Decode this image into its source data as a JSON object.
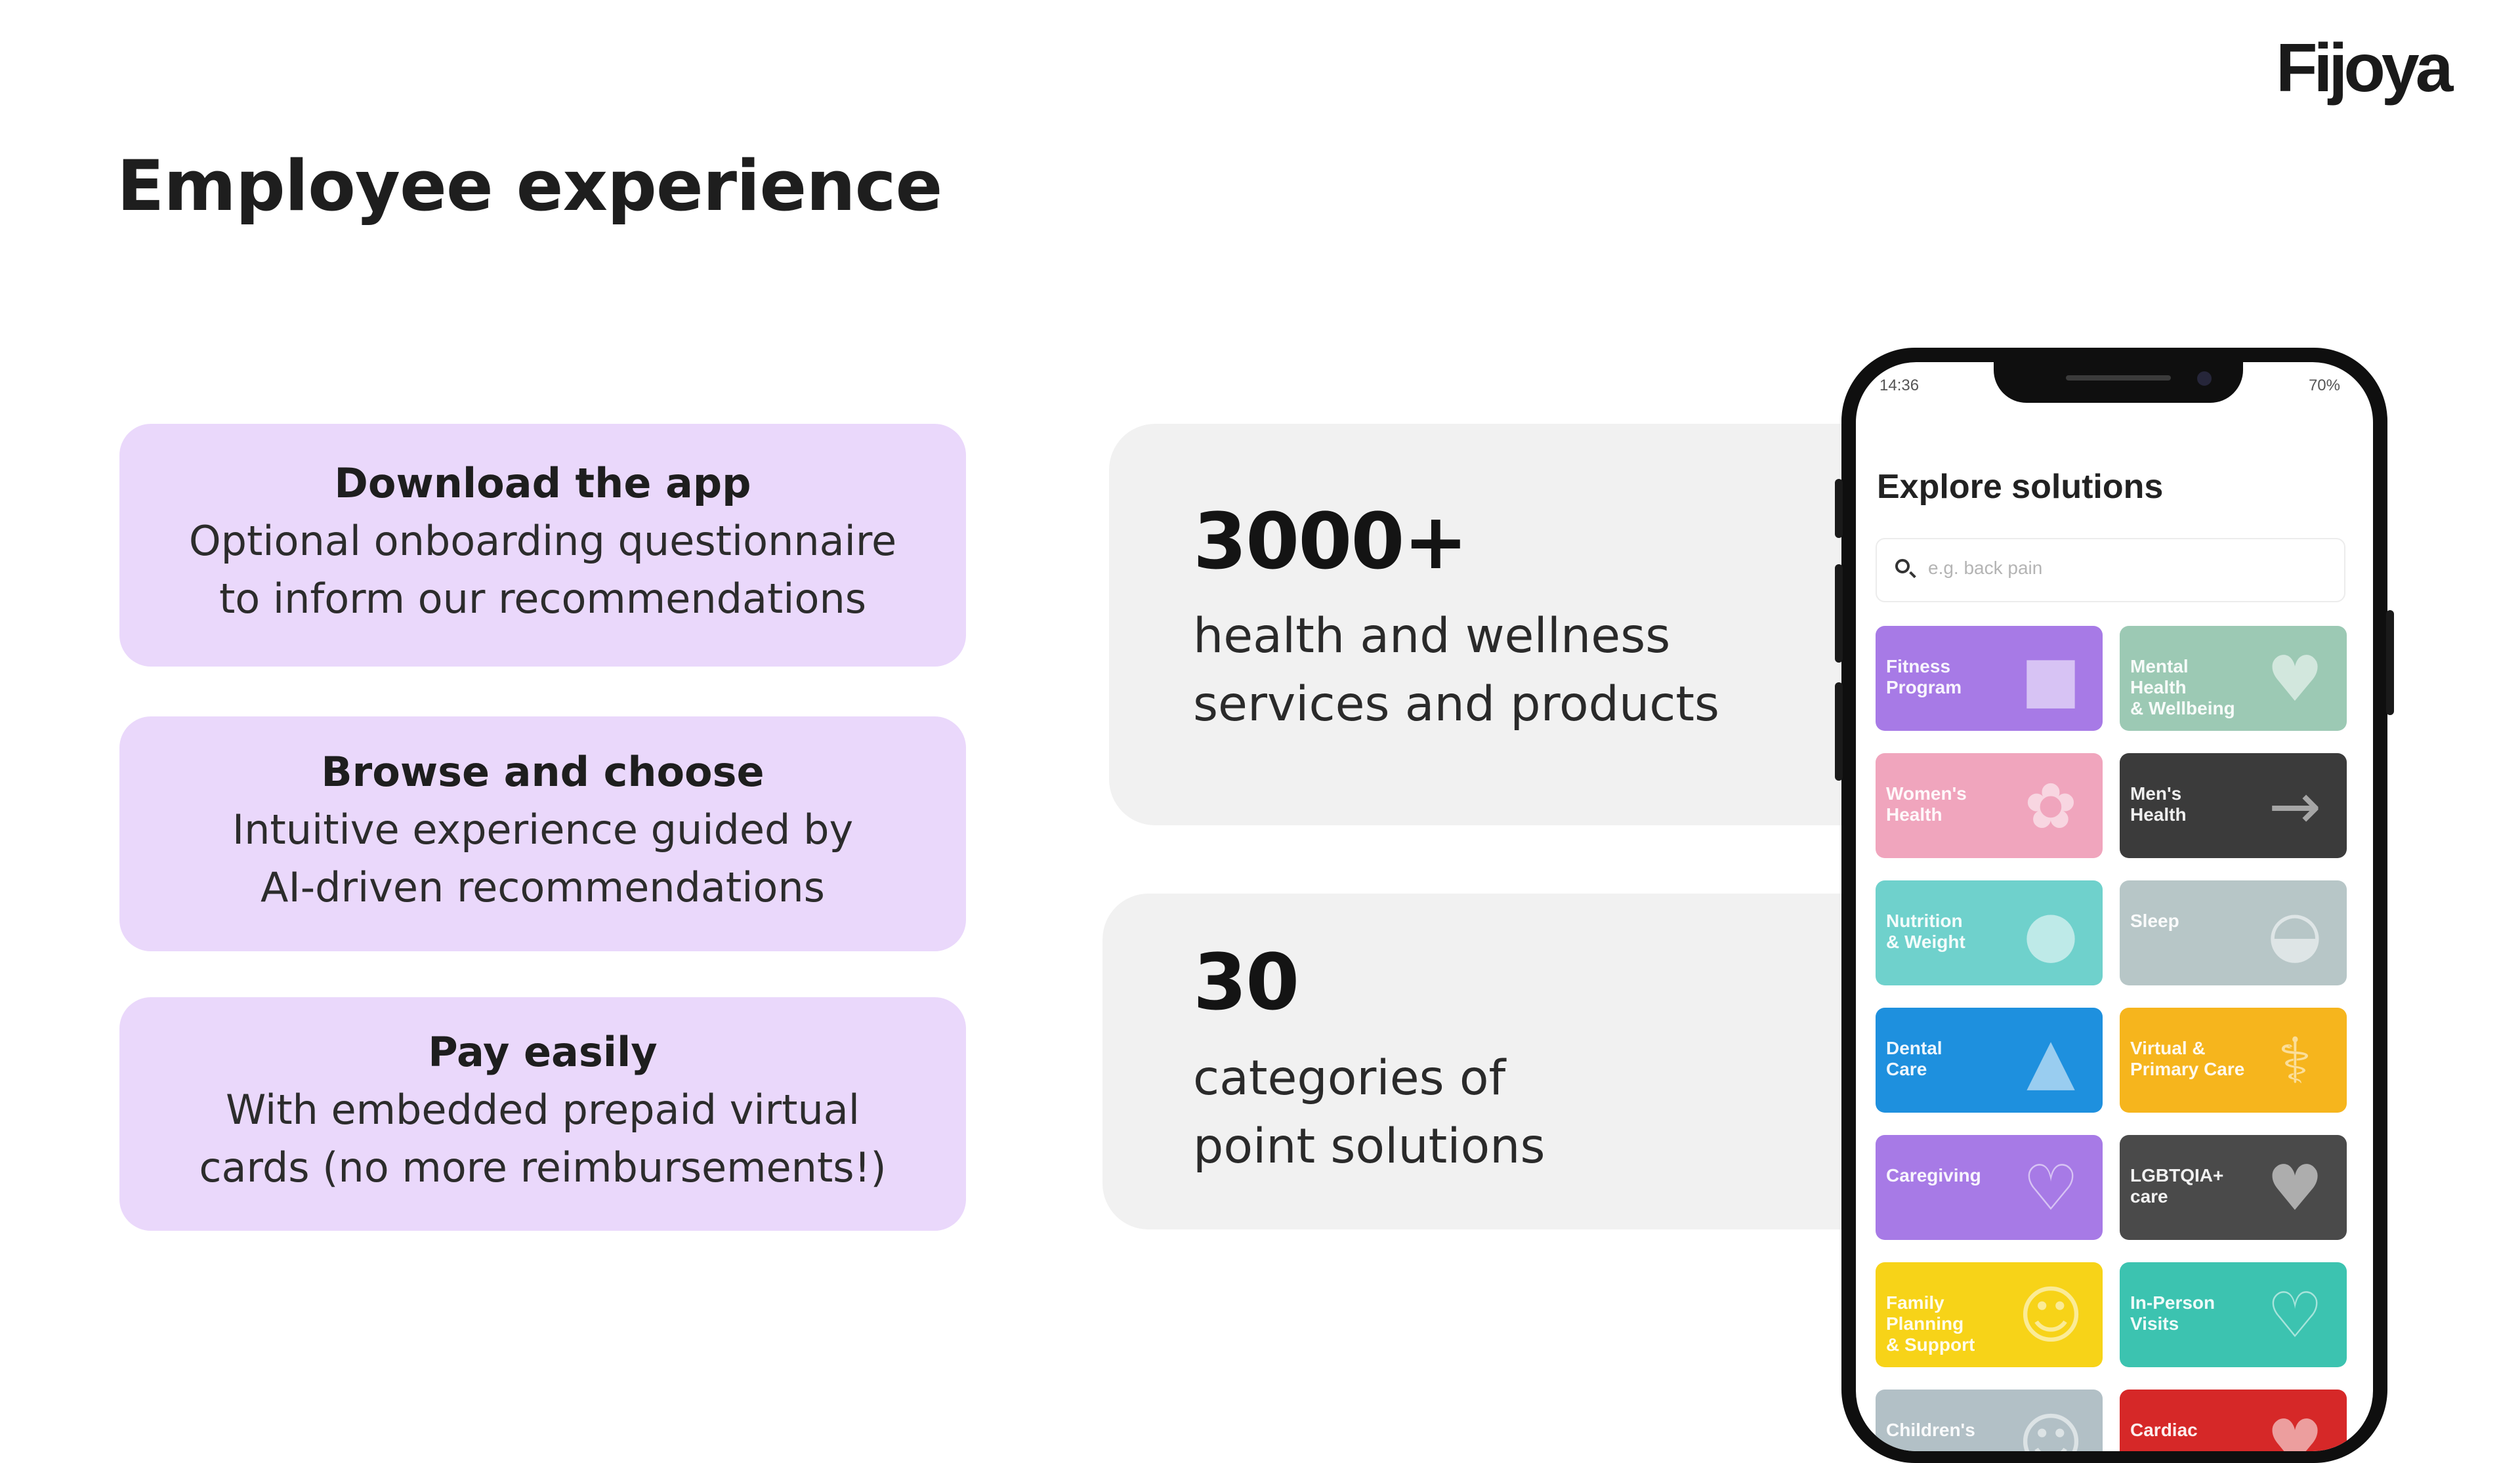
{
  "brand": {
    "logo_text": "Fijoya"
  },
  "page": {
    "title": "Employee experience"
  },
  "steps": [
    {
      "title": "Download the app",
      "lines": [
        "Optional onboarding questionnaire",
        "to inform our recommendations"
      ]
    },
    {
      "title": "Browse and choose",
      "lines": [
        "Intuitive experience guided by",
        "AI-driven recommendations"
      ]
    },
    {
      "title": "Pay easily",
      "lines": [
        "With embedded prepaid virtual",
        "cards (no more reimbursements!)"
      ]
    }
  ],
  "stats": [
    {
      "number": "3000+",
      "lines": [
        "health and wellness",
        "services and products"
      ]
    },
    {
      "number": "30",
      "lines": [
        "categories of",
        "point solutions"
      ]
    }
  ],
  "phone": {
    "status_time": "14:36",
    "status_right": "70%",
    "screen_title": "Explore solutions",
    "search_placeholder": "e.g. back pain",
    "tiles": [
      {
        "label": "Fitness\nProgram",
        "color": "#a77ae6",
        "icon": "dumbbell-icon"
      },
      {
        "label": "Mental Health\n& Wellbeing",
        "color": "#9cc9b4",
        "icon": "heart-brain-icon"
      },
      {
        "label": "Women's\nHealth",
        "color": "#f0a5bd",
        "icon": "tulip-icon"
      },
      {
        "label": "Men's\nHealth",
        "color": "#3b3b3b",
        "icon": "runner-icon"
      },
      {
        "label": "Nutrition\n& Weight",
        "color": "#6fd1cc",
        "icon": "salad-bowl-icon"
      },
      {
        "label": "Sleep",
        "color": "#b7c6c7",
        "icon": "sleep-mask-icon"
      },
      {
        "label": "Dental\nCare",
        "color": "#1e90de",
        "icon": "tooth-icon"
      },
      {
        "label": "Virtual &\nPrimary Care",
        "color": "#f6b51d",
        "icon": "stethoscope-icon"
      },
      {
        "label": "Caregiving",
        "color": "#a77ae6",
        "icon": "hands-heart-icon"
      },
      {
        "label": "LGBTQIA+\ncare",
        "color": "#4a4a4a",
        "icon": "rainbow-heart-icon"
      },
      {
        "label": "Family Planning\n& Support",
        "color": "#f7d318",
        "icon": "family-icon"
      },
      {
        "label": "In-Person\nVisits",
        "color": "#3cc3b0",
        "icon": "heart-stethoscope-icon"
      },
      {
        "label": "Children's",
        "color": "#b2c0c6",
        "icon": "child-icon"
      },
      {
        "label": "Cardiac",
        "color": "#d62828",
        "icon": "cardiac-icon"
      }
    ]
  }
}
